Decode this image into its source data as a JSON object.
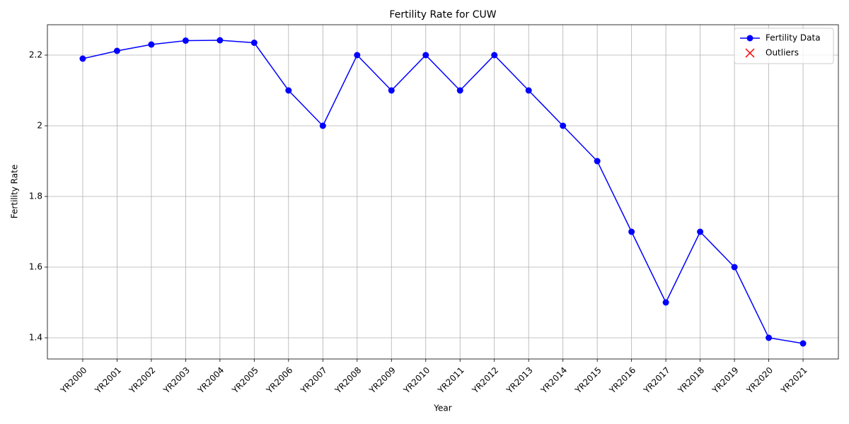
{
  "chart_data": {
    "type": "line",
    "title": "Fertility Rate for CUW",
    "x_label": "Year",
    "y_label": "Fertility Rate",
    "categories": [
      "YR2000",
      "YR2001",
      "YR2002",
      "YR2003",
      "YR2004",
      "YR2005",
      "YR2006",
      "YR2007",
      "YR2008",
      "YR2009",
      "YR2010",
      "YR2011",
      "YR2012",
      "YR2013",
      "YR2014",
      "YR2015",
      "YR2016",
      "YR2017",
      "YR2018",
      "YR2019",
      "YR2020",
      "YR2021"
    ],
    "series": [
      {
        "name": "Fertility Data",
        "color": "#0000ff",
        "marker": "o",
        "values": [
          2.19,
          2.212,
          2.23,
          2.241,
          2.242,
          2.235,
          2.1,
          2.0,
          2.2,
          2.1,
          2.2,
          2.1,
          2.2,
          2.1,
          2.0,
          1.9,
          1.7,
          1.5,
          1.7,
          1.6,
          1.4,
          1.384
        ]
      },
      {
        "name": "Outliers",
        "color": "#ff0000",
        "marker": "x",
        "values": [
          null,
          null,
          null,
          null,
          null,
          null,
          null,
          null,
          null,
          null,
          null,
          null,
          null,
          null,
          null,
          null,
          null,
          null,
          null,
          null,
          null,
          null
        ]
      }
    ],
    "ylim": [
      1.34,
      2.286
    ],
    "yticks": [
      1.4,
      1.6,
      1.8,
      2.0,
      2.2
    ],
    "grid": true,
    "legend": "upper right"
  }
}
